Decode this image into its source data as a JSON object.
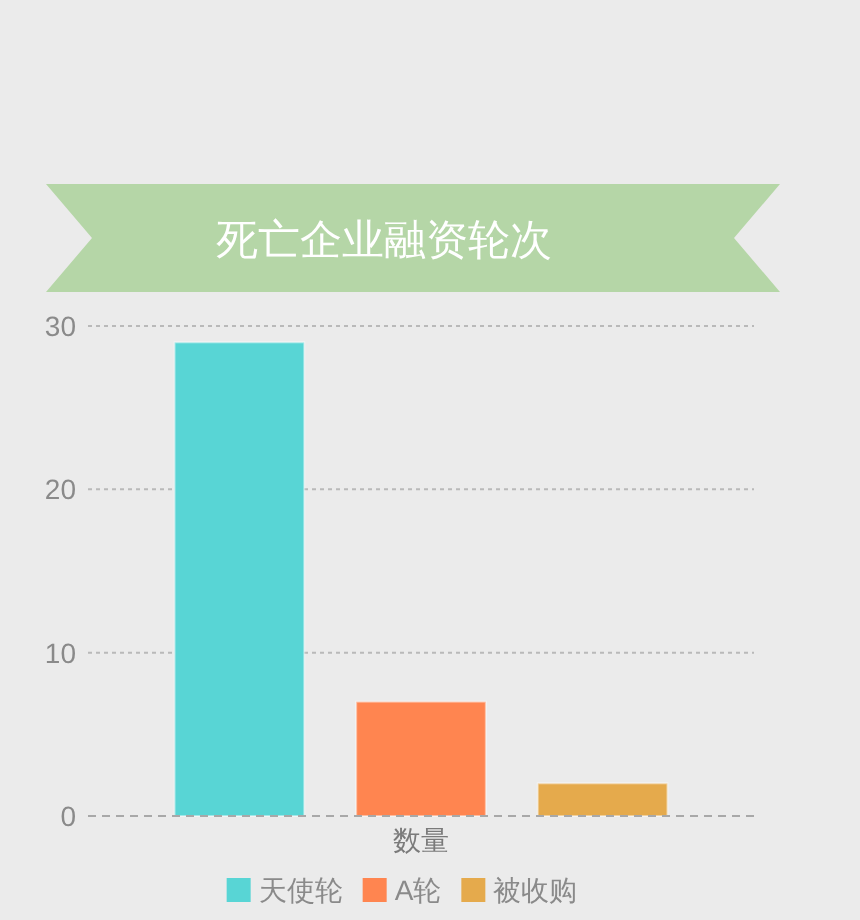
{
  "chart_data": {
    "type": "bar",
    "title": "死亡企业融资轮次",
    "categories": [
      "数量"
    ],
    "series": [
      {
        "name": "天使轮",
        "color": "#58d5d5",
        "values": [
          29
        ]
      },
      {
        "name": "A轮",
        "color": "#ff8550",
        "values": [
          7
        ]
      },
      {
        "name": "被收购",
        "color": "#e5aa4c",
        "values": [
          2
        ]
      }
    ],
    "ylim": [
      0,
      30
    ],
    "yticks": [
      0,
      10,
      20,
      30
    ],
    "grid": "y",
    "legend": "bottom"
  }
}
